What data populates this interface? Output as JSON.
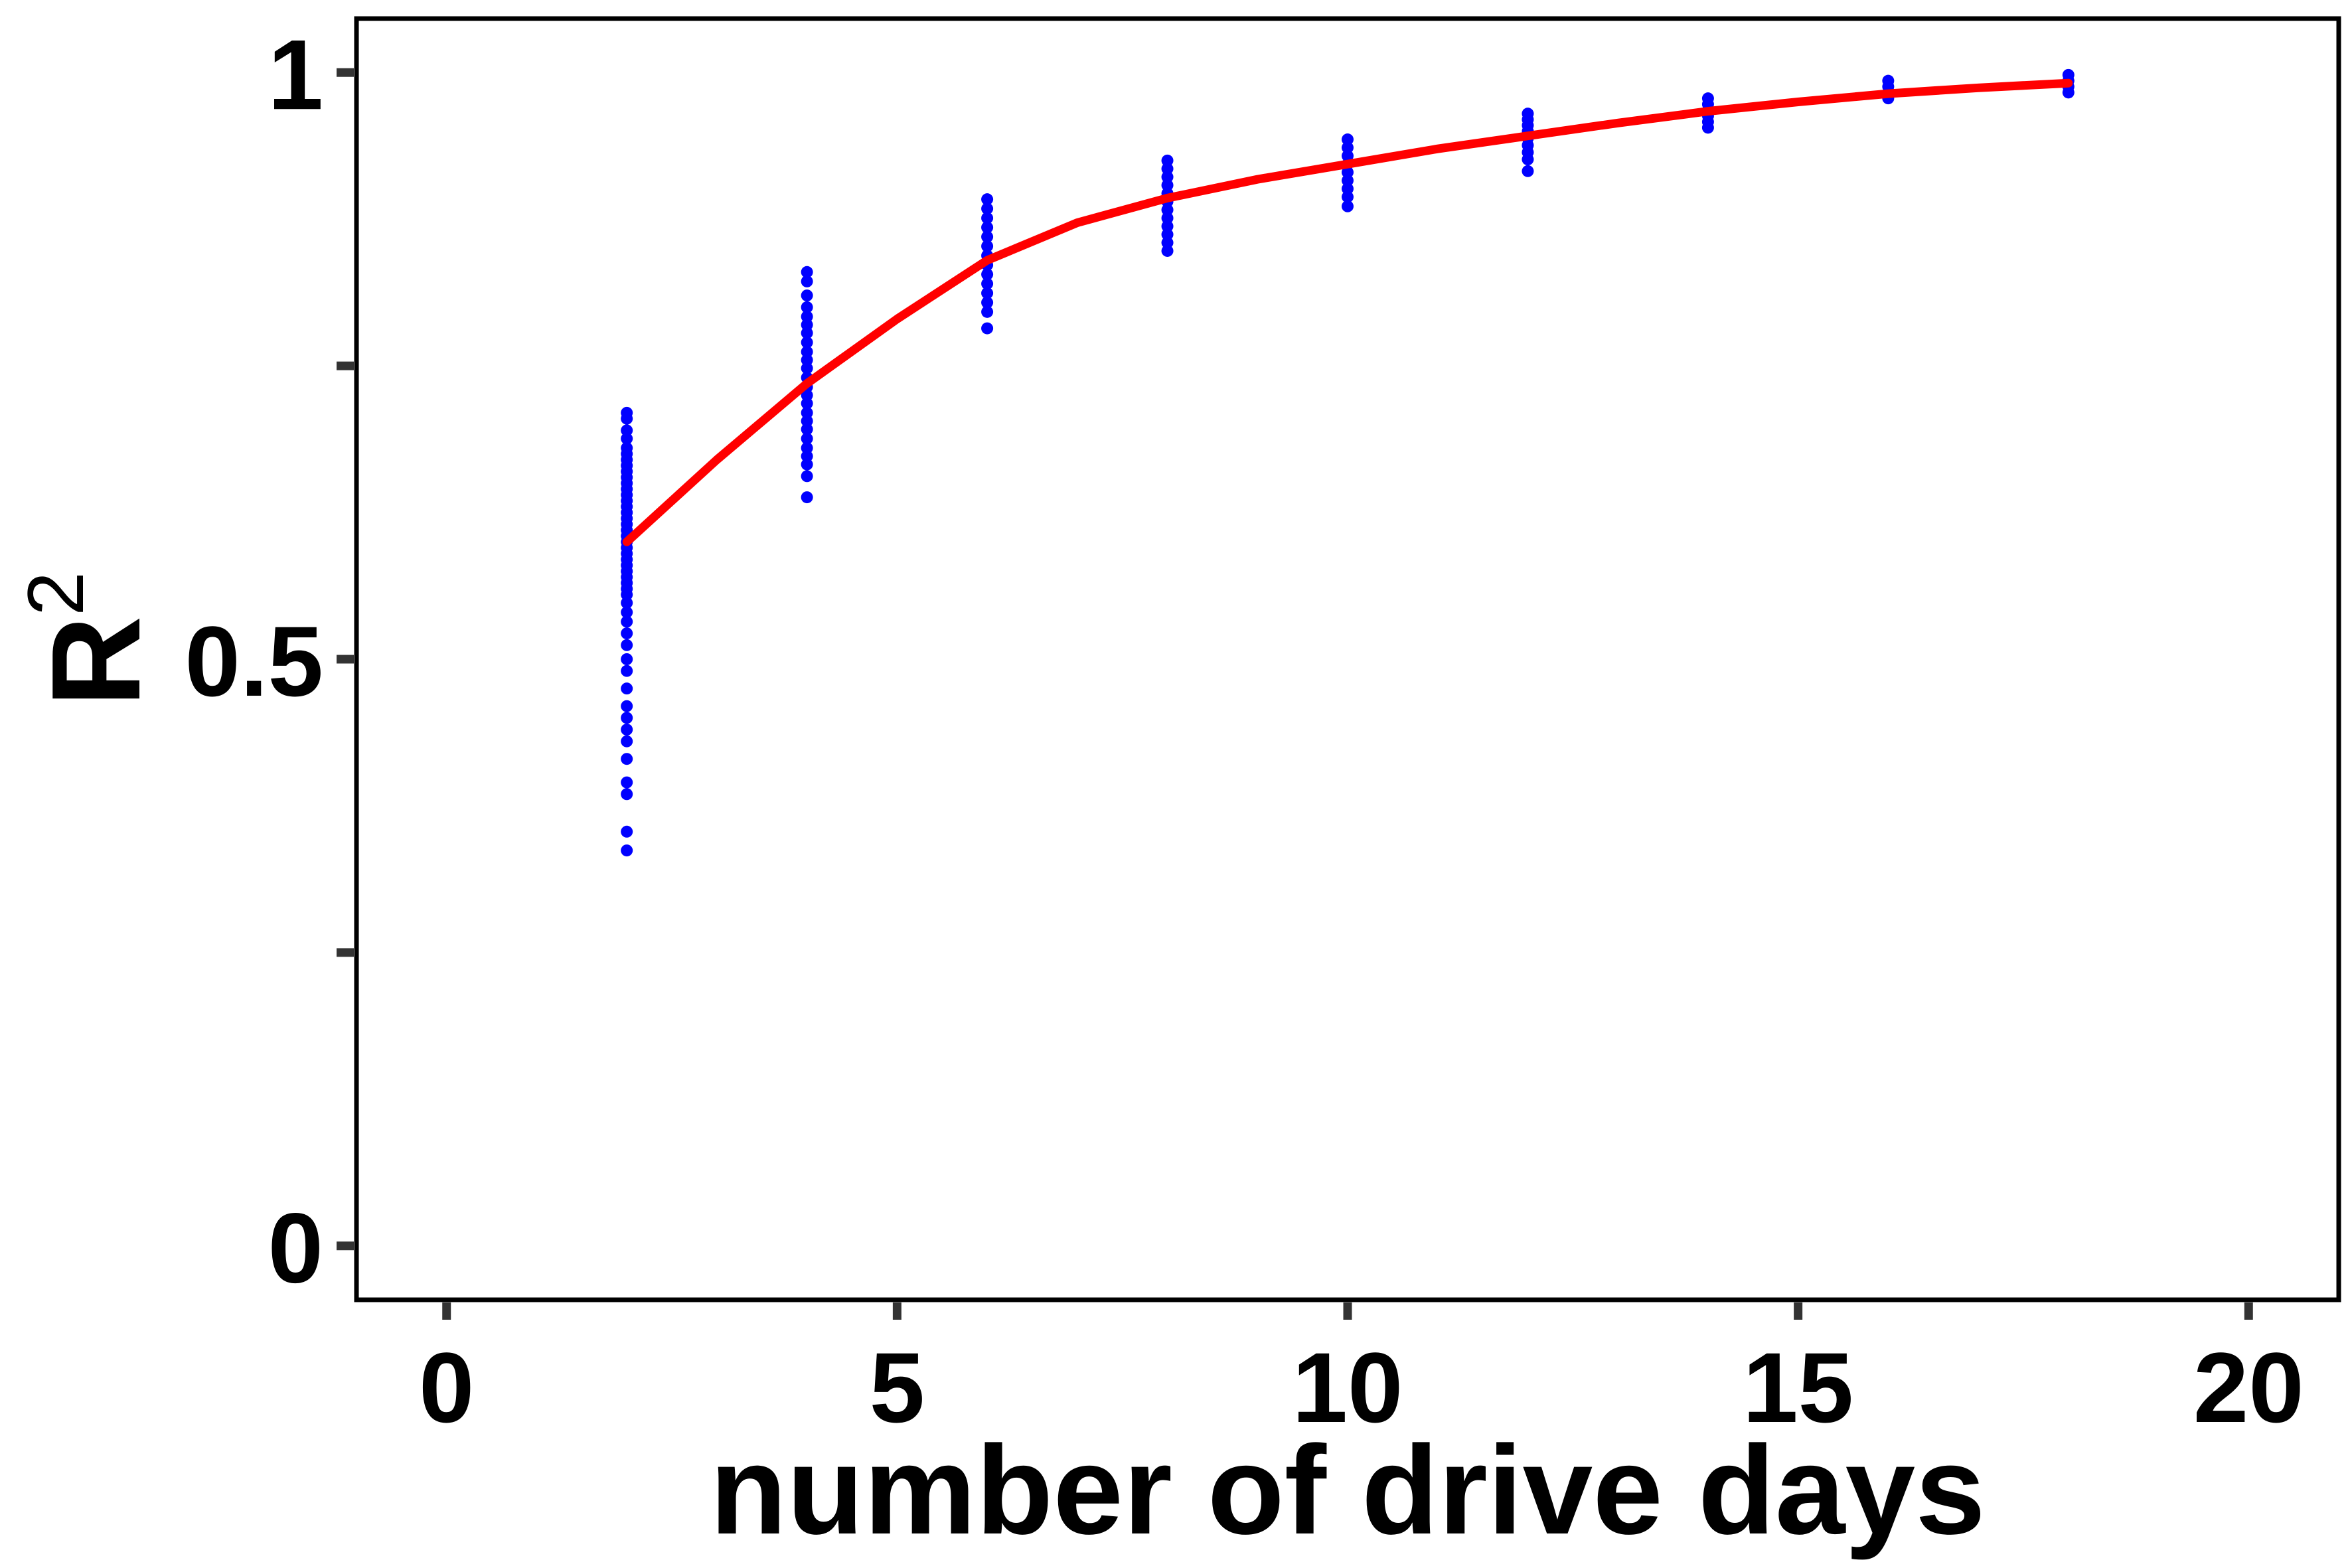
{
  "chart_data": {
    "type": "scatter",
    "title": "",
    "xlabel": "number of drive days",
    "ylabel": "R",
    "ylabel_superscript": "2",
    "xlim": [
      -1,
      21
    ],
    "ylim": [
      -0.046,
      1.046
    ],
    "x_ticks": [
      0,
      5,
      10,
      15,
      20
    ],
    "x_tick_labels": [
      "0",
      "5",
      "10",
      "15",
      "20"
    ],
    "y_ticks": [
      0,
      0.25,
      0.5,
      0.75,
      1
    ],
    "y_tick_labels": [
      "0",
      "",
      "0.5",
      "",
      "1"
    ],
    "grid": false,
    "colors": {
      "points": "#0000ff",
      "line": "#ff0000",
      "axes": "#000000",
      "ticks": "#333333"
    },
    "series": [
      {
        "type": "scatter",
        "points": [
          [
            2,
            0.71
          ],
          [
            2,
            0.705
          ],
          [
            2,
            0.695
          ],
          [
            2,
            0.688
          ],
          [
            2,
            0.68
          ],
          [
            2,
            0.675
          ],
          [
            2,
            0.67
          ],
          [
            2,
            0.665
          ],
          [
            2,
            0.66
          ],
          [
            2,
            0.655
          ],
          [
            2,
            0.65
          ],
          [
            2,
            0.645
          ],
          [
            2,
            0.64
          ],
          [
            2,
            0.635
          ],
          [
            2,
            0.63
          ],
          [
            2,
            0.625
          ],
          [
            2,
            0.62
          ],
          [
            2,
            0.615
          ],
          [
            2,
            0.61
          ],
          [
            2,
            0.605
          ],
          [
            2,
            0.6
          ],
          [
            2,
            0.595
          ],
          [
            2,
            0.59
          ],
          [
            2,
            0.585
          ],
          [
            2,
            0.58
          ],
          [
            2,
            0.575
          ],
          [
            2,
            0.57
          ],
          [
            2,
            0.565
          ],
          [
            2,
            0.56
          ],
          [
            2,
            0.555
          ],
          [
            2,
            0.548
          ],
          [
            2,
            0.54
          ],
          [
            2,
            0.532
          ],
          [
            2,
            0.522
          ],
          [
            2,
            0.512
          ],
          [
            2,
            0.5
          ],
          [
            2,
            0.49
          ],
          [
            2,
            0.475
          ],
          [
            2,
            0.46
          ],
          [
            2,
            0.45
          ],
          [
            2,
            0.44
          ],
          [
            2,
            0.43
          ],
          [
            2,
            0.415
          ],
          [
            2,
            0.395
          ],
          [
            2,
            0.385
          ],
          [
            2,
            0.353
          ],
          [
            2,
            0.337
          ],
          [
            4,
            0.83
          ],
          [
            4,
            0.822
          ],
          [
            4,
            0.81
          ],
          [
            4,
            0.8
          ],
          [
            4,
            0.792
          ],
          [
            4,
            0.785
          ],
          [
            4,
            0.778
          ],
          [
            4,
            0.77
          ],
          [
            4,
            0.762
          ],
          [
            4,
            0.755
          ],
          [
            4,
            0.748
          ],
          [
            4,
            0.74
          ],
          [
            4,
            0.732
          ],
          [
            4,
            0.725
          ],
          [
            4,
            0.718
          ],
          [
            4,
            0.71
          ],
          [
            4,
            0.703
          ],
          [
            4,
            0.696
          ],
          [
            4,
            0.688
          ],
          [
            4,
            0.68
          ],
          [
            4,
            0.673
          ],
          [
            4,
            0.666
          ],
          [
            4,
            0.656
          ],
          [
            4,
            0.638
          ],
          [
            6,
            0.892
          ],
          [
            6,
            0.884
          ],
          [
            6,
            0.876
          ],
          [
            6,
            0.868
          ],
          [
            6,
            0.86
          ],
          [
            6,
            0.852
          ],
          [
            6,
            0.844
          ],
          [
            6,
            0.836
          ],
          [
            6,
            0.828
          ],
          [
            6,
            0.82
          ],
          [
            6,
            0.812
          ],
          [
            6,
            0.804
          ],
          [
            6,
            0.796
          ],
          [
            6,
            0.782
          ],
          [
            8,
            0.925
          ],
          [
            8,
            0.918
          ],
          [
            8,
            0.911
          ],
          [
            8,
            0.904
          ],
          [
            8,
            0.897
          ],
          [
            8,
            0.89
          ],
          [
            8,
            0.883
          ],
          [
            8,
            0.876
          ],
          [
            8,
            0.869
          ],
          [
            8,
            0.862
          ],
          [
            8,
            0.855
          ],
          [
            8,
            0.848
          ],
          [
            10,
            0.943
          ],
          [
            10,
            0.936
          ],
          [
            10,
            0.929
          ],
          [
            10,
            0.922
          ],
          [
            10,
            0.915
          ],
          [
            10,
            0.908
          ],
          [
            10,
            0.901
          ],
          [
            10,
            0.894
          ],
          [
            10,
            0.886
          ],
          [
            12,
            0.965
          ],
          [
            12,
            0.96
          ],
          [
            12,
            0.955
          ],
          [
            12,
            0.95
          ],
          [
            12,
            0.944
          ],
          [
            12,
            0.938
          ],
          [
            12,
            0.932
          ],
          [
            12,
            0.926
          ],
          [
            12,
            0.916
          ],
          [
            14,
            0.978
          ],
          [
            14,
            0.973
          ],
          [
            14,
            0.968
          ],
          [
            14,
            0.963
          ],
          [
            14,
            0.958
          ],
          [
            14,
            0.953
          ],
          [
            16,
            0.993
          ],
          [
            16,
            0.988
          ],
          [
            16,
            0.983
          ],
          [
            16,
            0.978
          ],
          [
            18,
            0.998
          ],
          [
            18,
            0.993
          ],
          [
            18,
            0.988
          ],
          [
            18,
            0.983
          ]
        ]
      },
      {
        "type": "line",
        "x": [
          2,
          3,
          4,
          5,
          6,
          7,
          8,
          9,
          10,
          11,
          12,
          13,
          14,
          15,
          16,
          17,
          18
        ],
        "y": [
          0.6,
          0.67,
          0.735,
          0.79,
          0.84,
          0.872,
          0.893,
          0.909,
          0.922,
          0.935,
          0.946,
          0.957,
          0.967,
          0.975,
          0.982,
          0.987,
          0.991
        ]
      }
    ]
  }
}
